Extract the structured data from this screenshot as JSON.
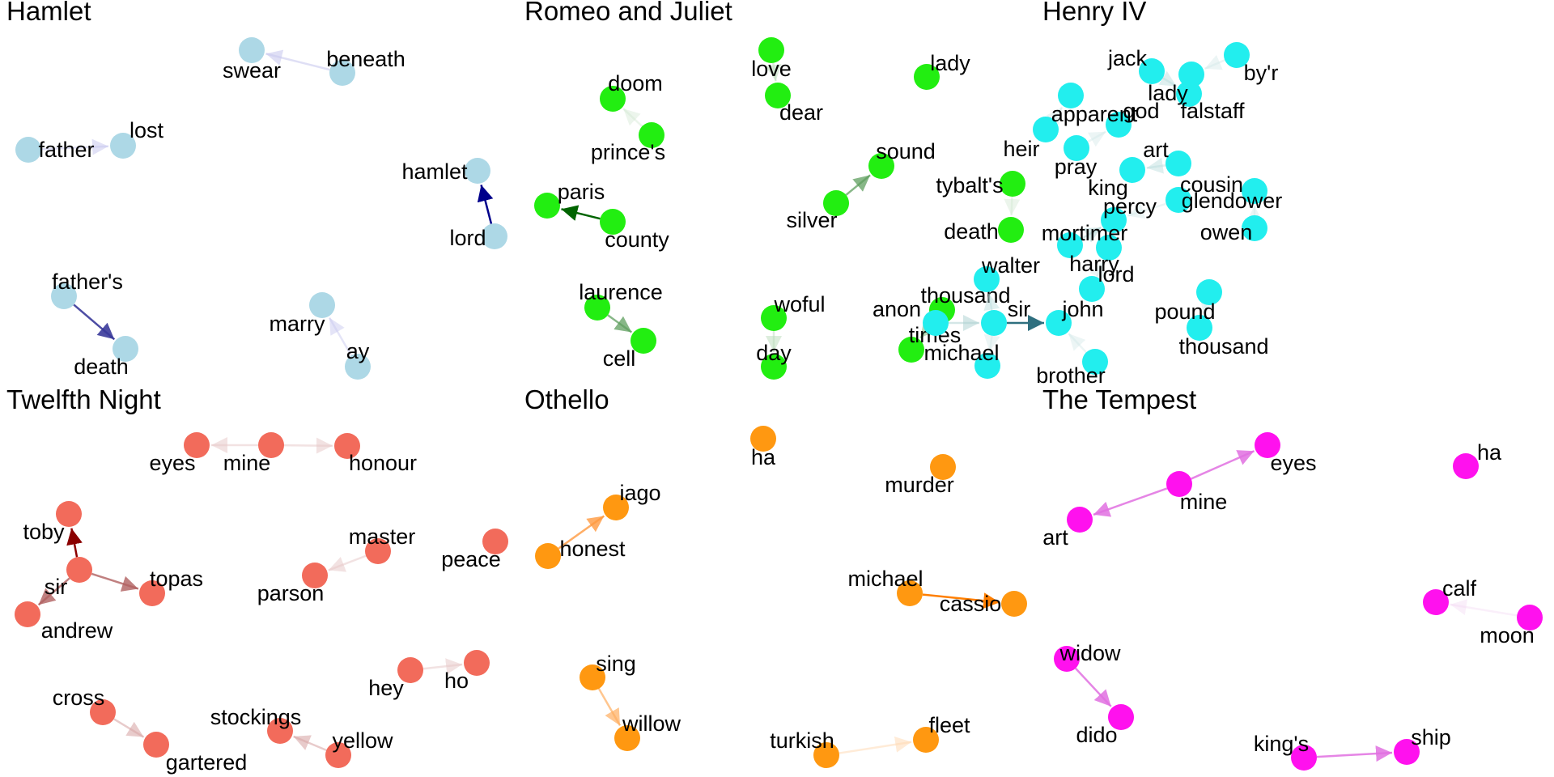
{
  "panels": [
    {
      "title": "Hamlet",
      "color": "#add8e6",
      "nodes": [
        {
          "id": "swear",
          "label": "swear"
        },
        {
          "id": "beneath",
          "label": "beneath"
        },
        {
          "id": "father",
          "label": "father"
        },
        {
          "id": "lost",
          "label": "lost"
        },
        {
          "id": "hamlet",
          "label": "hamlet"
        },
        {
          "id": "lord",
          "label": "lord"
        },
        {
          "id": "fathers",
          "label": "father's"
        },
        {
          "id": "death",
          "label": "death"
        },
        {
          "id": "marry",
          "label": "marry"
        },
        {
          "id": "ay",
          "label": "ay"
        }
      ],
      "edges": [
        {
          "from": "beneath",
          "to": "swear",
          "color": "#c9c9ef",
          "strength": 0.6
        },
        {
          "from": "father",
          "to": "lost",
          "color": "#c9c9ef",
          "strength": 0.55
        },
        {
          "from": "lord",
          "to": "hamlet",
          "color": "#00008b",
          "strength": 1.0
        },
        {
          "from": "fathers",
          "to": "death",
          "color": "#3a3a9a",
          "strength": 0.9
        },
        {
          "from": "ay",
          "to": "marry",
          "color": "#c9c9ef",
          "strength": 0.5
        }
      ]
    },
    {
      "title": "Romeo and Juliet",
      "color": "#22ee11",
      "nodes": [
        {
          "id": "doom",
          "label": "doom"
        },
        {
          "id": "princes",
          "label": "prince's"
        },
        {
          "id": "love",
          "label": "love"
        },
        {
          "id": "dear",
          "label": "dear"
        },
        {
          "id": "lady",
          "label": "lady"
        },
        {
          "id": "paris",
          "label": "paris"
        },
        {
          "id": "county",
          "label": "county"
        },
        {
          "id": "sound",
          "label": "sound"
        },
        {
          "id": "silver",
          "label": "silver"
        },
        {
          "id": "tybalts",
          "label": "tybalt's"
        },
        {
          "id": "death",
          "label": "death"
        },
        {
          "id": "laurence",
          "label": "laurence"
        },
        {
          "id": "cell",
          "label": "cell"
        },
        {
          "id": "woful",
          "label": "woful"
        },
        {
          "id": "day",
          "label": "day"
        },
        {
          "id": "thousand",
          "label": "thousand"
        },
        {
          "id": "times",
          "label": "times"
        }
      ],
      "edges": [
        {
          "from": "princes",
          "to": "doom",
          "color": "#cfe6cf",
          "strength": 0.4
        },
        {
          "from": "love",
          "to": "dear",
          "color": "#b9dcb9",
          "strength": 0.5
        },
        {
          "from": "county",
          "to": "paris",
          "color": "#006400",
          "strength": 1.0
        },
        {
          "from": "silver",
          "to": "sound",
          "color": "#5f9f5f",
          "strength": 0.75
        },
        {
          "from": "tybalts",
          "to": "death",
          "color": "#cfe6cf",
          "strength": 0.4
        },
        {
          "from": "laurence",
          "to": "cell",
          "color": "#5f9f5f",
          "strength": 0.75
        },
        {
          "from": "woful",
          "to": "day",
          "color": "#b9dcb9",
          "strength": 0.5
        },
        {
          "from": "thousand",
          "to": "times",
          "color": "#8fbf8f",
          "strength": 0.6
        }
      ]
    },
    {
      "title": "Henry IV",
      "color": "#22eeee",
      "nodes": [
        {
          "id": "byr",
          "label": "by'r"
        },
        {
          "id": "lady",
          "label": "lady"
        },
        {
          "id": "god",
          "label": "god"
        },
        {
          "id": "pray",
          "label": "pray"
        },
        {
          "id": "jack",
          "label": "jack"
        },
        {
          "id": "falstaff",
          "label": "falstaff"
        },
        {
          "id": "apparent",
          "label": "apparent"
        },
        {
          "id": "heir",
          "label": "heir"
        },
        {
          "id": "art",
          "label": "art"
        },
        {
          "id": "king",
          "label": "king"
        },
        {
          "id": "cousin",
          "label": "cousin"
        },
        {
          "id": "percy",
          "label": "percy"
        },
        {
          "id": "harry",
          "label": "harry"
        },
        {
          "id": "glendower",
          "label": "glendower"
        },
        {
          "id": "owen",
          "label": "owen"
        },
        {
          "id": "mortimer",
          "label": "mortimer"
        },
        {
          "id": "lord",
          "label": "lord"
        },
        {
          "id": "walter",
          "label": "walter"
        },
        {
          "id": "anon",
          "label": "anon"
        },
        {
          "id": "sir",
          "label": "sir"
        },
        {
          "id": "john",
          "label": "john"
        },
        {
          "id": "michael",
          "label": "michael"
        },
        {
          "id": "brother",
          "label": "brother"
        },
        {
          "id": "pound",
          "label": "pound"
        },
        {
          "id": "thousand",
          "label": "thousand"
        }
      ],
      "edges": [
        {
          "from": "byr",
          "to": "lady",
          "color": "#cfe6e6",
          "strength": 0.4
        },
        {
          "from": "pray",
          "to": "god",
          "color": "#cfe6e6",
          "strength": 0.4
        },
        {
          "from": "jack",
          "to": "falstaff",
          "color": "#b9dcdc",
          "strength": 0.45
        },
        {
          "from": "heir",
          "to": "apparent",
          "color": "#cfe6e6",
          "strength": 0.4
        },
        {
          "from": "art",
          "to": "king",
          "color": "#b9dcdc",
          "strength": 0.45
        },
        {
          "from": "cousin",
          "to": "percy",
          "color": "#cfe6e6",
          "strength": 0.4
        },
        {
          "from": "harry",
          "to": "percy",
          "color": "#a9cfcf",
          "strength": 0.5
        },
        {
          "from": "owen",
          "to": "glendower",
          "color": "#cfe6e6",
          "strength": 0.4
        },
        {
          "from": "lord",
          "to": "mortimer",
          "color": "#cfe6e6",
          "strength": 0.4
        },
        {
          "from": "sir",
          "to": "walter",
          "color": "#b9dcdc",
          "strength": 0.45
        },
        {
          "from": "anon",
          "to": "sir",
          "color": "#a9cfcf",
          "strength": 0.5
        },
        {
          "from": "sir",
          "to": "john",
          "color": "#2f6f7f",
          "strength": 1.0
        },
        {
          "from": "sir",
          "to": "michael",
          "color": "#cfe6e6",
          "strength": 0.4
        },
        {
          "from": "brother",
          "to": "john",
          "color": "#cfe6e6",
          "strength": 0.4
        },
        {
          "from": "pound",
          "to": "thousand",
          "color": "#cfe6e6",
          "strength": 0.4
        }
      ]
    },
    {
      "title": "Twelfth Night",
      "color": "#f26b5b",
      "nodes": [
        {
          "id": "eyes",
          "label": "eyes"
        },
        {
          "id": "mine",
          "label": "mine"
        },
        {
          "id": "honour",
          "label": "honour"
        },
        {
          "id": "toby",
          "label": "toby"
        },
        {
          "id": "sir",
          "label": "sir"
        },
        {
          "id": "topas",
          "label": "topas"
        },
        {
          "id": "andrew",
          "label": "andrew"
        },
        {
          "id": "master",
          "label": "master"
        },
        {
          "id": "parson",
          "label": "parson"
        },
        {
          "id": "peace",
          "label": "peace"
        },
        {
          "id": "hey",
          "label": "hey"
        },
        {
          "id": "ho",
          "label": "ho"
        },
        {
          "id": "cross",
          "label": "cross"
        },
        {
          "id": "gartered",
          "label": "gartered"
        },
        {
          "id": "stockings",
          "label": "stockings"
        },
        {
          "id": "yellow",
          "label": "yellow"
        }
      ],
      "edges": [
        {
          "from": "mine",
          "to": "eyes",
          "color": "#e6c6c6",
          "strength": 0.5
        },
        {
          "from": "mine",
          "to": "honour",
          "color": "#e6c6c6",
          "strength": 0.5
        },
        {
          "from": "sir",
          "to": "toby",
          "color": "#8b0000",
          "strength": 1.0
        },
        {
          "from": "sir",
          "to": "topas",
          "color": "#b06060",
          "strength": 0.8
        },
        {
          "from": "sir",
          "to": "andrew",
          "color": "#b06060",
          "strength": 0.8
        },
        {
          "from": "master",
          "to": "parson",
          "color": "#e6c6c6",
          "strength": 0.5
        },
        {
          "from": "hey",
          "to": "ho",
          "color": "#e6c6c6",
          "strength": 0.5
        },
        {
          "from": "cross",
          "to": "gartered",
          "color": "#d9a9a9",
          "strength": 0.6
        },
        {
          "from": "yellow",
          "to": "stockings",
          "color": "#d9a9a9",
          "strength": 0.6
        }
      ]
    },
    {
      "title": "Othello",
      "color": "#ff9811",
      "nodes": [
        {
          "id": "ha",
          "label": "ha"
        },
        {
          "id": "murder",
          "label": "murder"
        },
        {
          "id": "iago",
          "label": "iago"
        },
        {
          "id": "honest",
          "label": "honest"
        },
        {
          "id": "michael",
          "label": "michael"
        },
        {
          "id": "cassio",
          "label": "cassio"
        },
        {
          "id": "sing",
          "label": "sing"
        },
        {
          "id": "willow",
          "label": "willow"
        },
        {
          "id": "turkish",
          "label": "turkish"
        },
        {
          "id": "fleet",
          "label": "fleet"
        }
      ],
      "edges": [
        {
          "from": "honest",
          "to": "iago",
          "color": "#ff9a40",
          "strength": 0.8
        },
        {
          "from": "michael",
          "to": "cassio",
          "color": "#ff7f00",
          "strength": 1.0
        },
        {
          "from": "sing",
          "to": "willow",
          "color": "#ffae60",
          "strength": 0.7
        },
        {
          "from": "turkish",
          "to": "fleet",
          "color": "#ffd8b0",
          "strength": 0.5
        }
      ]
    },
    {
      "title": "The Tempest",
      "color": "#ff11ee",
      "nodes": [
        {
          "id": "eyes",
          "label": "eyes"
        },
        {
          "id": "mine",
          "label": "mine"
        },
        {
          "id": "art",
          "label": "art"
        },
        {
          "id": "ha",
          "label": "ha"
        },
        {
          "id": "calf",
          "label": "calf"
        },
        {
          "id": "moon",
          "label": "moon"
        },
        {
          "id": "widow",
          "label": "widow"
        },
        {
          "id": "dido",
          "label": "dido"
        },
        {
          "id": "kings",
          "label": "king's"
        },
        {
          "id": "ship",
          "label": "ship"
        }
      ],
      "edges": [
        {
          "from": "mine",
          "to": "eyes",
          "color": "#e070e0",
          "strength": 0.85
        },
        {
          "from": "mine",
          "to": "art",
          "color": "#e070e0",
          "strength": 0.85
        },
        {
          "from": "moon",
          "to": "calf",
          "color": "#f3d6f3",
          "strength": 0.4
        },
        {
          "from": "widow",
          "to": "dido",
          "color": "#e070e0",
          "strength": 0.85
        },
        {
          "from": "kings",
          "to": "ship",
          "color": "#e070e0",
          "strength": 0.85
        }
      ]
    }
  ]
}
